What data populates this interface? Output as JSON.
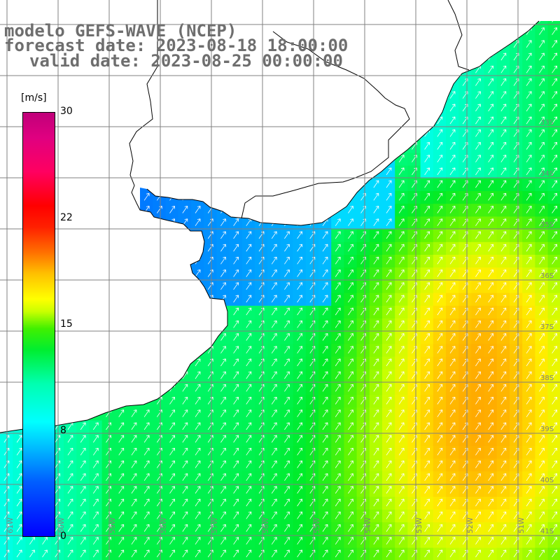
{
  "title": {
    "line1": "modelo GEFS-WAVE (NCEP)",
    "line2": "forecast date: 2023-08-18 18:00:00",
    "line3": "valid date: 2023-08-25 00:00:00"
  },
  "colorbar": {
    "units": "[m/s]",
    "ticks": [
      "30",
      "22",
      "15",
      "8",
      "0"
    ],
    "tick_values": [
      30,
      22,
      15,
      8,
      0
    ],
    "colors": [
      "#0000ff",
      "#00c8ff",
      "#00ffff",
      "#00ee30",
      "#c8ff00",
      "#ffff00",
      "#ff7000",
      "#ff0000",
      "#c0007a"
    ]
  },
  "axes": {
    "lat_labels": [
      "33S",
      "34S",
      "35S",
      "36S",
      "37S",
      "38S",
      "39S",
      "40S",
      "41S"
    ],
    "lon_labels": [
      "61W",
      "60W",
      "59W",
      "58W",
      "57W",
      "56W",
      "55W",
      "54W",
      "53W",
      "52W",
      "51W"
    ]
  },
  "colors": {
    "land": "#ffffff",
    "coast": "#000000",
    "grid": "#808080",
    "arrow": "#ffffff",
    "title": "#6e6e6e"
  }
}
